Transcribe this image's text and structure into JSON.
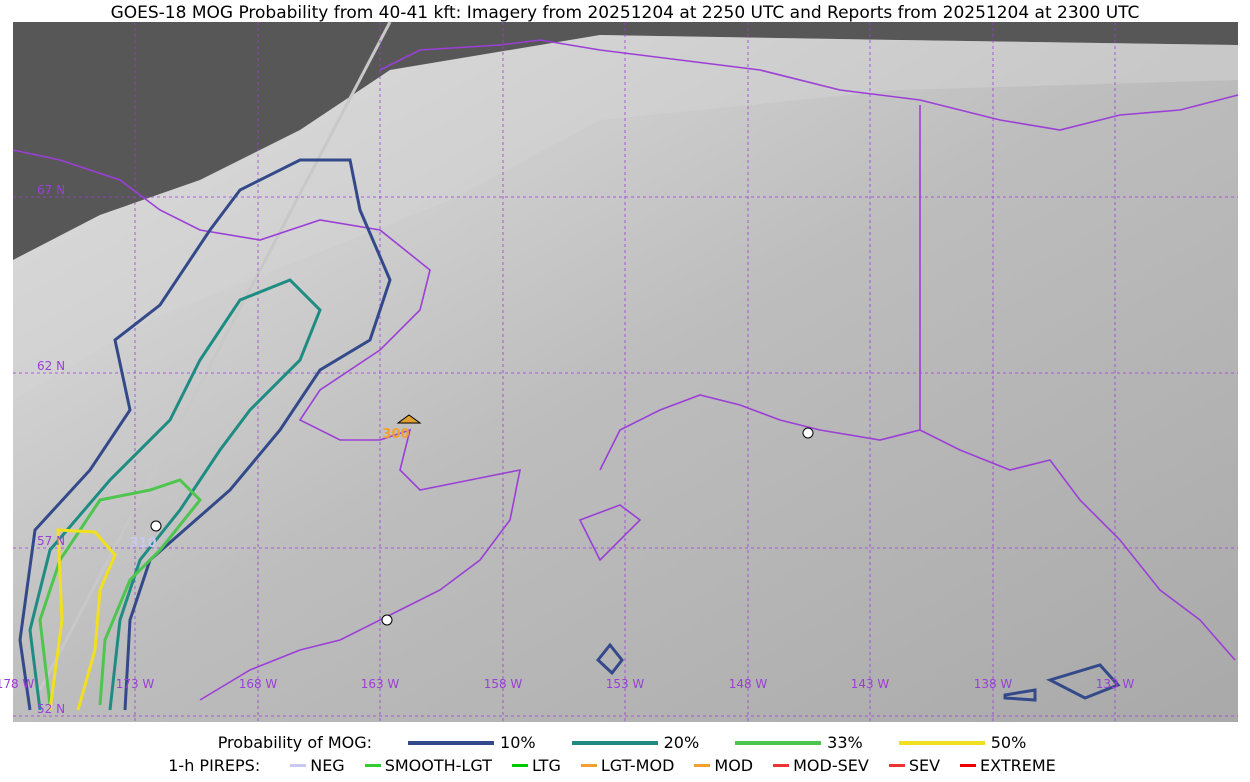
{
  "header": {
    "title": "GOES-18 MOG Probability from 40-41 kft: Imagery from 20251204 at 2250 UTC and Reports from 20251204 at 2300 UTC"
  },
  "map": {
    "lat_labels": [
      "67 N",
      "62 N",
      "57 N",
      "52 N"
    ],
    "lon_labels": [
      "178 W",
      "173 W",
      "168 W",
      "163 W",
      "158 W",
      "153 W",
      "148 W",
      "143 W",
      "138 W",
      "133 W"
    ],
    "reports": [
      {
        "label": "300"
      },
      {
        "label": "310"
      }
    ]
  },
  "legend": {
    "probability": {
      "title": "Probability of MOG:",
      "levels": [
        "10%",
        "20%",
        "33%",
        "50%"
      ]
    },
    "pireps": {
      "title": "1-h PIREPS:",
      "items": [
        "NEG",
        "SMOOTH-LGT",
        "LTG",
        "LGT-MOD",
        "MOD",
        "MOD-SEV",
        "SEV",
        "EXTREME"
      ]
    }
  }
}
